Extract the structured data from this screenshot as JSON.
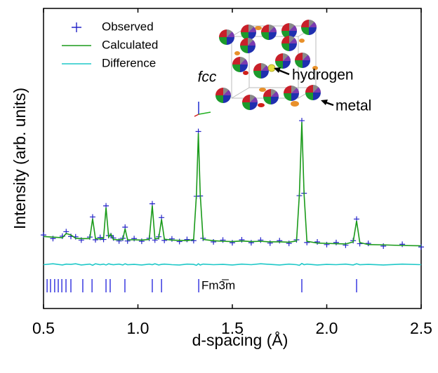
{
  "chart_data": {
    "type": "diffraction",
    "x_label": "d-spacing (Å)",
    "y_label": "Intensity (arb. units)",
    "xlim": [
      0.5,
      2.5
    ],
    "xticks": [
      {
        "value": 0.5,
        "label": "0.5"
      },
      {
        "value": 1.0,
        "label": "1.0"
      },
      {
        "value": 1.5,
        "label": "1.5"
      },
      {
        "value": 2.0,
        "label": "2.0"
      },
      {
        "value": 2.5,
        "label": "2.5"
      }
    ],
    "ylim": [
      0,
      100
    ],
    "grid": false,
    "legend": "upper left",
    "x": [
      0.5,
      0.55,
      0.6,
      0.62,
      0.645,
      0.67,
      0.7,
      0.745,
      0.76,
      0.775,
      0.8,
      0.818,
      0.831,
      0.845,
      0.857,
      0.87,
      0.9,
      0.92,
      0.932,
      0.945,
      0.98,
      1.02,
      1.06,
      1.076,
      1.09,
      1.11,
      1.125,
      1.14,
      1.18,
      1.22,
      1.26,
      1.295,
      1.31,
      1.32,
      1.33,
      1.345,
      1.4,
      1.45,
      1.5,
      1.55,
      1.6,
      1.65,
      1.7,
      1.75,
      1.8,
      1.84,
      1.855,
      1.868,
      1.88,
      1.895,
      1.95,
      2.0,
      2.05,
      2.1,
      2.14,
      2.158,
      2.175,
      2.22,
      2.3,
      2.4,
      2.5
    ],
    "series": [
      {
        "name": "Observed",
        "mode": "markers",
        "color": "#2424c8",
        "values": [
          24.5,
          23.3,
          24.1,
          25.6,
          24.0,
          23.9,
          22.8,
          23.8,
          30.5,
          22.9,
          23.7,
          23.0,
          34.2,
          24.3,
          24.3,
          23.5,
          22.5,
          23.4,
          27.1,
          22.5,
          23.3,
          22.4,
          23.4,
          34.9,
          22.8,
          23.9,
          30.3,
          22.7,
          23.2,
          22.3,
          23.0,
          22.6,
          37.4,
          59.0,
          37.5,
          23.4,
          22.2,
          22.8,
          21.9,
          22.9,
          21.9,
          22.8,
          21.8,
          22.6,
          21.7,
          22.9,
          37.6,
          62.6,
          38.4,
          22.0,
          22.2,
          21.3,
          22.0,
          21.1,
          22.6,
          29.8,
          21.6,
          21.7,
          20.8,
          21.4,
          20.5
        ]
      },
      {
        "name": "Calculated",
        "mode": "line",
        "color": "#1a9a1a",
        "values": [
          24.0,
          23.8,
          23.6,
          25.0,
          24.5,
          23.4,
          23.3,
          23.3,
          29.9,
          23.3,
          23.2,
          23.4,
          33.6,
          23.8,
          24.8,
          23.0,
          22.9,
          23.0,
          26.6,
          22.9,
          22.9,
          22.8,
          23.0,
          34.3,
          23.2,
          23.4,
          29.7,
          23.1,
          22.8,
          22.7,
          22.6,
          23.0,
          38.0,
          58.4,
          38.0,
          23.0,
          22.6,
          22.4,
          22.3,
          22.5,
          22.3,
          22.4,
          22.2,
          22.2,
          22.1,
          22.5,
          38.0,
          62.1,
          38.0,
          22.4,
          21.8,
          21.7,
          21.6,
          21.5,
          22.2,
          29.2,
          22.0,
          21.3,
          21.2,
          21.0,
          20.9
        ]
      },
      {
        "name": "Difference",
        "mode": "line",
        "color": "#1ec8c8",
        "values": [
          14.6,
          14.9,
          14.5,
          14.8,
          14.7,
          14.9,
          14.5,
          14.8,
          14.4,
          14.9,
          14.6,
          14.8,
          14.5,
          14.9,
          14.7,
          14.6,
          14.8,
          14.5,
          14.9,
          14.6,
          14.7,
          14.5,
          14.8,
          14.6,
          14.9,
          14.5,
          14.7,
          14.8,
          14.6,
          14.5,
          14.8,
          14.7,
          14.4,
          14.9,
          14.5,
          14.8,
          14.6,
          14.7,
          14.5,
          14.8,
          14.6,
          14.9,
          14.7,
          14.5,
          14.8,
          14.6,
          14.4,
          15.0,
          14.6,
          14.8,
          14.5,
          14.7,
          14.6,
          14.8,
          14.5,
          14.9,
          14.6,
          14.7,
          14.5,
          14.8,
          14.6
        ]
      }
    ],
    "reflections": [
      0.519,
      0.537,
      0.559,
      0.578,
      0.597,
      0.619,
      0.645,
      0.708,
      0.757,
      0.831,
      0.853,
      0.931,
      1.076,
      1.125,
      1.322,
      1.868,
      2.158
    ],
    "reflection_color": "#3a3ae0",
    "phase_label": "Fm3̅m",
    "annotations": [
      "fcc",
      "hydrogen",
      "metal"
    ]
  }
}
